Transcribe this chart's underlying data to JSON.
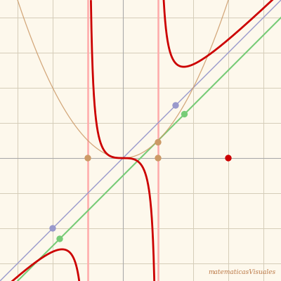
{
  "bg_color": "#fdf8ec",
  "grid_color": "#d4ccb8",
  "axis_color": "#aaaaaa",
  "xmin": -3.5,
  "xmax": 4.5,
  "ymin": -3.5,
  "ymax": 4.5,
  "asymptote_x1": -1.0,
  "asymptote_x2": 1.0,
  "oblique_color": "#9999cc",
  "oblique_slope": 1.0,
  "oblique_intercept": 0.0,
  "green_line_color": "#77cc77",
  "green_slope": 1.0,
  "green_intercept": -0.5,
  "orange_color": "#cc9966",
  "rational_color": "#cc0000",
  "vasymptote_color": "#ffaaaa",
  "vasymptote_gray": "#aaaaaa",
  "dot_orange1": [
    -1.0,
    0.0
  ],
  "dot_orange2": [
    1.0,
    0.0
  ],
  "dot_orange3": [
    1.0,
    0.45
  ],
  "dot_blue1": [
    -2.0,
    -2.0
  ],
  "dot_blue2": [
    1.5,
    1.5
  ],
  "dot_green1": [
    -1.8,
    -2.3
  ],
  "dot_green2": [
    1.75,
    1.25
  ],
  "dot_red": [
    3.0,
    0.0
  ],
  "watermark": "matematicasVisuales",
  "watermark_color": "#bb7744"
}
